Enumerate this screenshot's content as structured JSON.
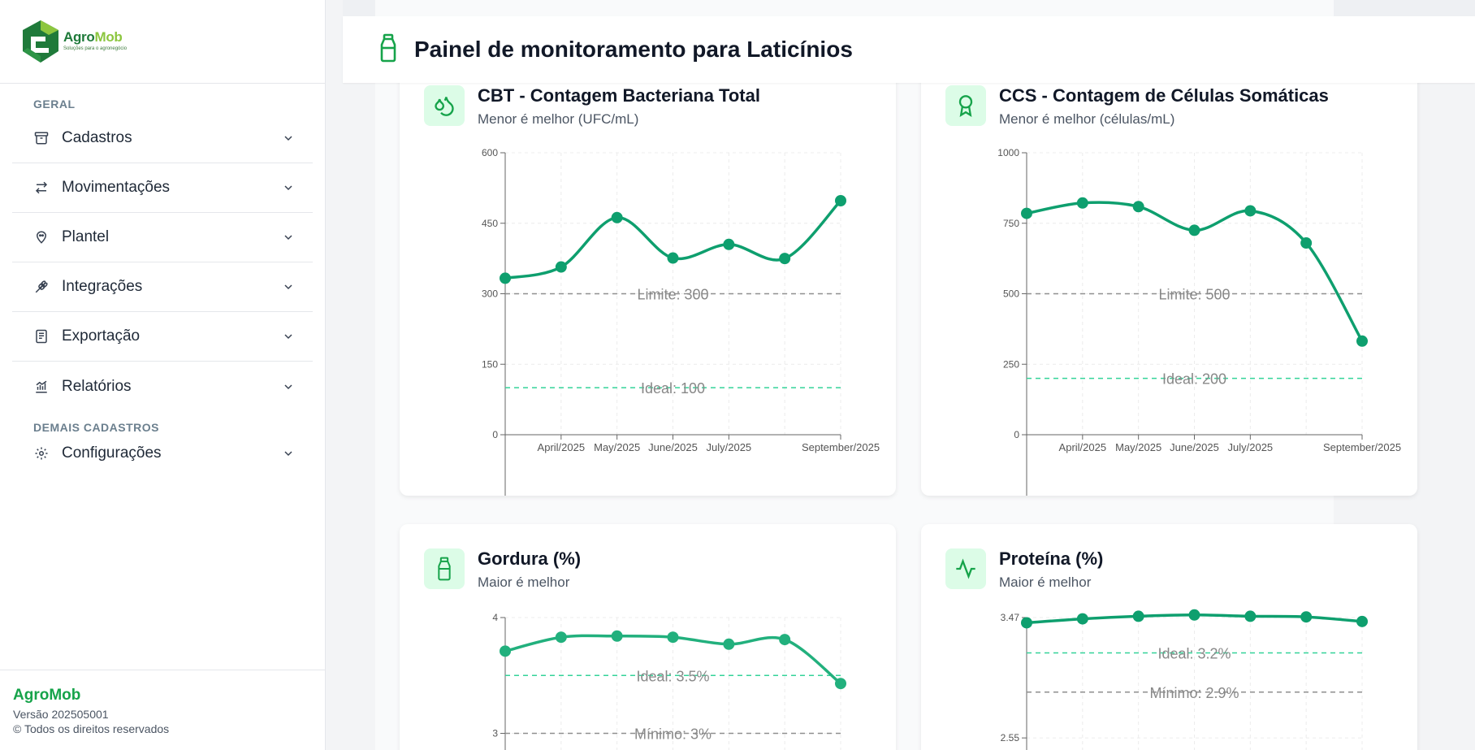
{
  "brand": {
    "name_part1": "Agro",
    "name_part2": "Mob",
    "tagline": "Soluções para o agronegócio",
    "colors": {
      "dark_green": "#1f7a3a",
      "light_green": "#8cc63f",
      "accent": "#0e9f6e"
    }
  },
  "sidebar": {
    "section_general": "GERAL",
    "section_other": "DEMAIS CADASTROS",
    "items": [
      {
        "label": "Cadastros",
        "icon": "archive-icon"
      },
      {
        "label": "Movimentações",
        "icon": "arrows-exchange-icon"
      },
      {
        "label": "Plantel",
        "icon": "cow-icon"
      },
      {
        "label": "Integrações",
        "icon": "wheat-icon"
      },
      {
        "label": "Exportação",
        "icon": "document-icon"
      },
      {
        "label": "Relatórios",
        "icon": "bar-chart-icon"
      }
    ],
    "other_items": [
      {
        "label": "Configurações",
        "icon": "gear-icon"
      }
    ],
    "footer": {
      "brand": "AgroMob",
      "version": "Versão 202505001",
      "rights": "© Todos os direitos reservados"
    }
  },
  "header": {
    "title": "Painel de monitoramento para Laticínios",
    "icon": "milk-bottle-icon"
  },
  "cards": {
    "cbt": {
      "title": "CBT - Contagem Bacteriana Total",
      "subtitle": "Menor é melhor (UFC/mL)",
      "icon": "droplets-icon"
    },
    "ccs": {
      "title": "CCS - Contagem de Células Somáticas",
      "subtitle": "Menor é melhor (células/mL)",
      "icon": "award-ribbon-icon"
    },
    "gordura": {
      "title": "Gordura (%)",
      "subtitle": "Maior é melhor",
      "icon": "milk-bottle-icon"
    },
    "proteina": {
      "title": "Proteína (%)",
      "subtitle": "Maior é melhor",
      "icon": "activity-pulse-icon"
    }
  },
  "chart_data": [
    {
      "id": "cbt",
      "type": "line",
      "x": [
        0,
        1,
        2,
        3,
        4,
        5,
        6
      ],
      "x_tick_labels": [
        "April/2025",
        "May/2025",
        "June/2025",
        "July/2025",
        "September/2025"
      ],
      "x_tick_positions": [
        1,
        2,
        3,
        4,
        6
      ],
      "values": [
        333,
        357,
        462,
        376,
        405,
        375,
        498
      ],
      "ylim": [
        0,
        600
      ],
      "yticks": [
        0,
        150,
        300,
        450,
        600
      ],
      "reference_lines": [
        {
          "label": "Limite: 300",
          "value": 300,
          "color": "#8f8f8f"
        },
        {
          "label": "Ideal: 100",
          "value": 100,
          "color": "#34d399"
        }
      ],
      "line_color": "#0e9f6e",
      "grid": true
    },
    {
      "id": "ccs",
      "type": "line",
      "x": [
        0,
        1,
        2,
        3,
        4,
        5,
        6
      ],
      "x_tick_labels": [
        "April/2025",
        "May/2025",
        "June/2025",
        "July/2025",
        "September/2025"
      ],
      "x_tick_positions": [
        1,
        2,
        3,
        4,
        6
      ],
      "values": [
        785,
        822,
        809,
        725,
        794,
        680,
        332
      ],
      "ylim": [
        0,
        1000
      ],
      "yticks": [
        0,
        250,
        500,
        750,
        1000
      ],
      "reference_lines": [
        {
          "label": "Limite: 500",
          "value": 500,
          "color": "#8f8f8f"
        },
        {
          "label": "Ideal: 200",
          "value": 200,
          "color": "#34d399"
        }
      ],
      "line_color": "#0e9f6e",
      "grid": true
    },
    {
      "id": "gordura",
      "type": "line",
      "x": [
        0,
        1,
        2,
        3,
        4,
        5,
        6
      ],
      "values": [
        3.71,
        3.83,
        3.84,
        3.83,
        3.77,
        3.81,
        3.43
      ],
      "ylim": [
        2,
        4
      ],
      "yticks": [
        3,
        4
      ],
      "reference_lines": [
        {
          "label": "Ideal: 3.5%",
          "value": 3.5,
          "color": "#34d399"
        },
        {
          "label": "Mínimo: 3%",
          "value": 3.0,
          "color": "#8f8f8f"
        }
      ],
      "line_color": "#22b07d",
      "grid": true
    },
    {
      "id": "proteina",
      "type": "line",
      "x": [
        0,
        1,
        2,
        3,
        4,
        5,
        6
      ],
      "values": [
        3.43,
        3.46,
        3.48,
        3.49,
        3.48,
        3.475,
        3.44
      ],
      "ylim": [
        1.7,
        3.47
      ],
      "yticks": [
        2.55,
        3.47
      ],
      "ytick_labels": [
        "2.55",
        "3.47"
      ],
      "reference_lines": [
        {
          "label": "Ideal: 3.2%",
          "value": 3.2,
          "color": "#34d399"
        },
        {
          "label": "Mínimo: 2.9%",
          "value": 2.9,
          "color": "#8f8f8f"
        }
      ],
      "line_color": "#0e9f6e",
      "grid": true
    }
  ]
}
